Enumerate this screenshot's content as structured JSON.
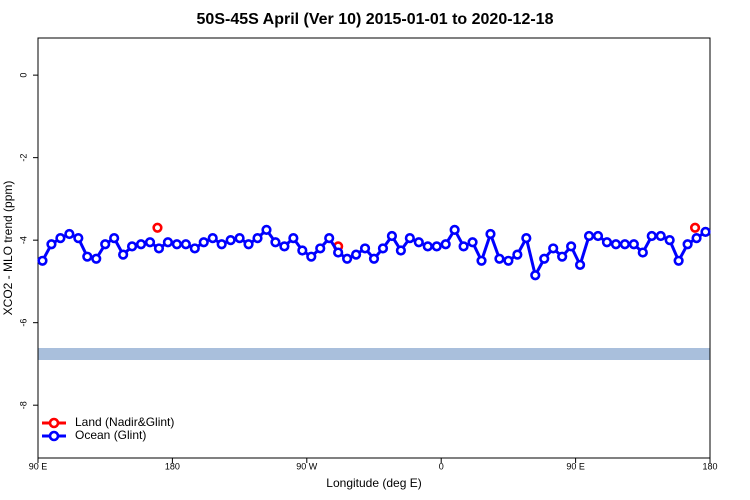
{
  "chart_data": {
    "type": "line",
    "title": "50S-45S April (Ver 10)   2015-01-01 to 2020-12-18",
    "xlabel": "Longitude (deg E)",
    "ylabel": "XCO2 - MLO trend (ppm)",
    "xlim": [
      90,
      540
    ],
    "xticks": [
      {
        "value": 90,
        "label": "90 E"
      },
      180,
      {
        "value": 270,
        "label": "90 W"
      },
      {
        "value": 360,
        "label": "0"
      },
      {
        "value": 450,
        "label": "90 E"
      },
      {
        "value": 540,
        "label": "180"
      }
    ],
    "ylim": [
      -9.28,
      0.9
    ],
    "yticks": [
      0,
      -2,
      -4,
      -6,
      -8
    ],
    "legend": "bottom-left",
    "series": [
      {
        "name": "Land (Nadir&Glint)",
        "color": "#ff0000",
        "x": [
          170,
          291,
          530
        ],
        "values": [
          -3.7,
          -4.15,
          -3.7
        ]
      },
      {
        "name": "Ocean (Glint)",
        "color": "#0000ff",
        "x": [
          93,
          99,
          105,
          111,
          117,
          123,
          129,
          135,
          141,
          147,
          153,
          159,
          165,
          171,
          177,
          183,
          189,
          195,
          201,
          207,
          213,
          219,
          225,
          231,
          237,
          243,
          249,
          255,
          261,
          267,
          273,
          279,
          285,
          291,
          297,
          303,
          309,
          315,
          321,
          327,
          333,
          339,
          345,
          351,
          357,
          363,
          369,
          375,
          381,
          387,
          393,
          399,
          405,
          411,
          417,
          423,
          429,
          435,
          441,
          447,
          453,
          459,
          465,
          471,
          477,
          483,
          489,
          495,
          501,
          507,
          513,
          519,
          525,
          531,
          537
        ],
        "values": [
          -4.5,
          -4.1,
          -3.95,
          -3.85,
          -3.95,
          -4.4,
          -4.45,
          -4.1,
          -3.95,
          -4.35,
          -4.15,
          -4.1,
          -4.05,
          -4.2,
          -4.05,
          -4.1,
          -4.1,
          -4.2,
          -4.05,
          -3.95,
          -4.1,
          -4.0,
          -3.95,
          -4.1,
          -3.95,
          -3.75,
          -4.05,
          -4.15,
          -3.95,
          -4.25,
          -4.4,
          -4.2,
          -3.95,
          -4.3,
          -4.45,
          -4.35,
          -4.2,
          -4.45,
          -4.2,
          -3.9,
          -4.25,
          -3.95,
          -4.05,
          -4.15,
          -4.15,
          -4.1,
          -3.75,
          -4.15,
          -4.05,
          -4.5,
          -3.85,
          -4.45,
          -4.5,
          -4.35,
          -3.95,
          -4.85,
          -4.45,
          -4.2,
          -4.4,
          -4.15,
          -4.6,
          -3.9,
          -3.9,
          -4.05,
          -4.1,
          -4.1,
          -4.1,
          -4.3,
          -3.9,
          -3.9,
          -4.0,
          -4.5,
          -4.1,
          -3.95,
          -3.8
        ]
      }
    ]
  }
}
